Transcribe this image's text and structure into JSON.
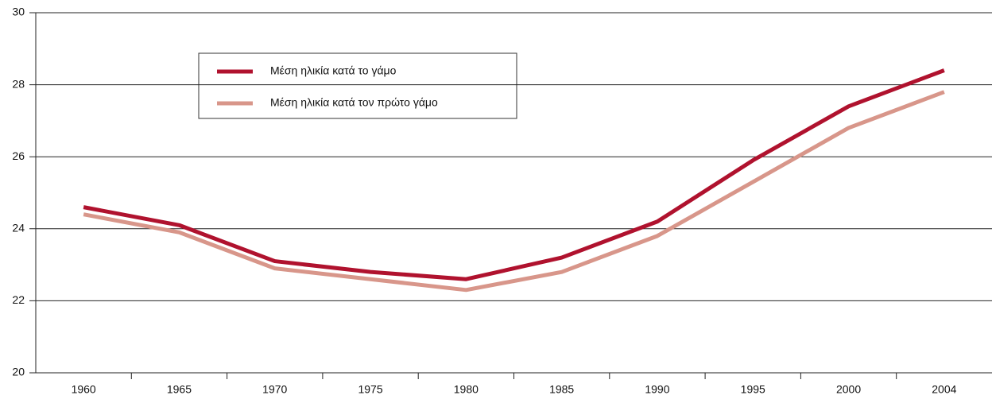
{
  "chart_data": {
    "type": "line",
    "categories": [
      "1960",
      "1965",
      "1970",
      "1975",
      "1980",
      "1985",
      "1990",
      "1995",
      "2000",
      "2004"
    ],
    "series": [
      {
        "name": "Μέση ηλικία κατά το γάμο",
        "color": "#b0122e",
        "values": [
          24.6,
          24.1,
          23.1,
          22.8,
          22.6,
          23.2,
          24.2,
          25.9,
          27.4,
          28.4
        ]
      },
      {
        "name": "Μέση ηλικία κατά τον πρώτο γάμο",
        "color": "#d8968a",
        "values": [
          24.4,
          23.9,
          22.9,
          22.6,
          22.3,
          22.8,
          23.8,
          25.3,
          26.8,
          27.8
        ]
      }
    ],
    "ylim": [
      20,
      30
    ],
    "yticks": [
      20,
      22,
      24,
      26,
      28,
      30
    ],
    "grid": true
  }
}
